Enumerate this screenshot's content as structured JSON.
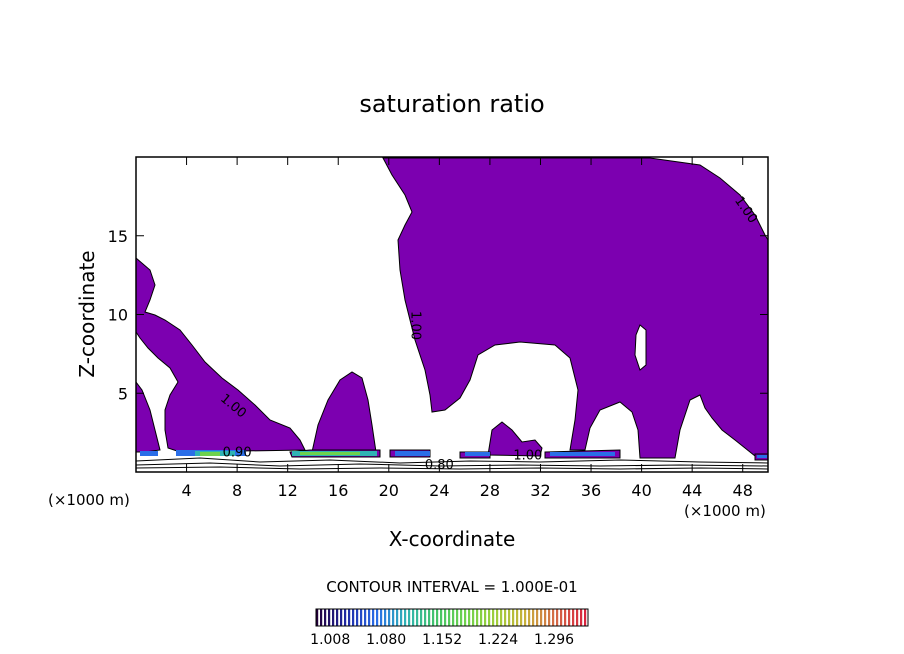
{
  "chart_data": {
    "type": "contour",
    "title": "saturation ratio",
    "xlabel": "X-coordinate",
    "ylabel": "Z-coordinate",
    "x_unit_left": "(×1000 m)",
    "x_unit_right": "(×1000 m)",
    "xlim": [
      0,
      50
    ],
    "ylim": [
      0,
      20
    ],
    "x_ticks": [
      4,
      8,
      12,
      16,
      20,
      24,
      28,
      32,
      36,
      40,
      44,
      48
    ],
    "x_tick_labels": [
      "4",
      "8",
      "12",
      "16",
      "20",
      "24",
      "28",
      "32",
      "36",
      "40",
      "44",
      "48"
    ],
    "y_ticks": [
      5,
      10,
      15
    ],
    "y_tick_labels": [
      "5",
      "10",
      "15"
    ],
    "contour_interval_text": "CONTOUR INTERVAL = 1.000E-01",
    "fill_color": "#7c00b0",
    "contour_labels": [
      {
        "text": "1.00",
        "x": 48,
        "y": 16.5,
        "angle": 55
      },
      {
        "text": "1.00",
        "x": 21.8,
        "y": 9.3,
        "angle": 90
      },
      {
        "text": "1.00",
        "x": 7.5,
        "y": 4.0,
        "angle": 40
      },
      {
        "text": "0.80",
        "x": 24.0,
        "y": 0.2,
        "angle": 0
      },
      {
        "text": "0.90",
        "x": 8.0,
        "y": 1.0,
        "angle": 0
      },
      {
        "text": "1.00",
        "x": 31.0,
        "y": 0.8,
        "angle": 0
      }
    ],
    "colorbar": {
      "min": 1.0,
      "max": 1.35,
      "tick_values": [
        1.008,
        1.08,
        1.152,
        1.224,
        1.296
      ],
      "tick_labels": [
        "1.008",
        "1.080",
        "1.152",
        "1.224",
        "1.296"
      ],
      "colors": [
        "#24003c",
        "#1f2aa6",
        "#2a6ee8",
        "#2fb4b4",
        "#43c468",
        "#6fd24c",
        "#9fce3a",
        "#c8b03a",
        "#d46a46",
        "#d8243e"
      ]
    }
  }
}
